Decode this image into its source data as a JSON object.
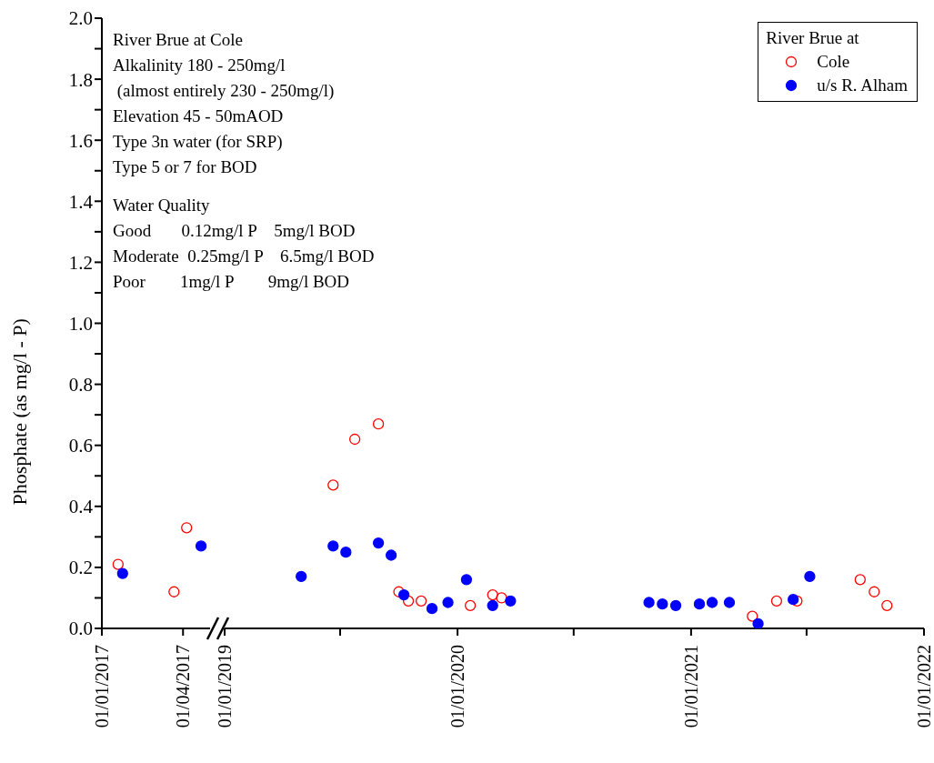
{
  "chart_data": [
    {
      "type": "scatter",
      "ylabel": "Phosphate (as mg/l - P)",
      "marker": "circle",
      "annotations": [
        "River Brue at Cole\nAlkalinity 180 - 250mg/l\n (almost entirely 230 - 250mg/l)\nElevation 45 - 50mAOD\nType 3n water (for SRP)\nType 5 or 7 for BOD",
        "Water Quality\nGood       0.12mg/l P    5mg/l BOD\nModerate  0.25mg/l P    6.5mg/l BOD\nPoor        1mg/l P        9mg/l BOD"
      ],
      "xlim": [
        "2017-01-01",
        "2017-05-01"
      ],
      "xticks": [
        {
          "value": "2017-01-01",
          "label": "01/01/2017"
        },
        {
          "value": "2017-04-01",
          "label": "01/04/2017"
        }
      ],
      "ylim": [
        0,
        2
      ],
      "yticks": [
        {
          "value": 0,
          "label": "0.0"
        },
        {
          "value": 0.1,
          "label": null
        },
        0.2,
        {
          "value": 0.3,
          "label": null
        },
        0.4,
        {
          "value": 0.5,
          "label": null
        },
        0.6,
        {
          "value": 0.7,
          "label": null
        },
        0.8,
        {
          "value": 0.9,
          "label": null
        },
        {
          "value": 1,
          "label": "1.0"
        },
        {
          "value": 1.1,
          "label": null
        },
        1.2,
        {
          "value": 1.3,
          "label": null
        },
        1.4,
        {
          "value": 1.5,
          "label": null
        },
        1.6,
        {
          "value": 1.7,
          "label": null
        },
        1.8,
        {
          "value": 1.9,
          "label": null
        },
        {
          "value": 2,
          "label": "2.0"
        }
      ],
      "series": [
        {
          "color": "#ff0000",
          "x": [
            "2017-01-19",
            "2017-03-22",
            "2017-04-05"
          ],
          "values": [
            0.21,
            0.12,
            0.33
          ]
        },
        {
          "color": "#0000ff",
          "x": [
            "2017-01-24",
            "2017-04-21"
          ],
          "values": [
            0.18,
            0.27
          ]
        }
      ]
    },
    {
      "type": "scatter",
      "marker": "circle",
      "tick_labels": "x",
      "legend": "top right",
      "legend_title": "River Brue at",
      "xlim": [
        "2019-01-01",
        "2022-01-01"
      ],
      "xticks": [
        {
          "value": "2019-01-01",
          "label": "01/01/2019"
        },
        {
          "value": "2019-07-01",
          "label": null
        },
        {
          "value": "2020-01-01",
          "label": "01/01/2020"
        },
        {
          "value": "2020-07-01",
          "label": null
        },
        {
          "value": "2021-01-01",
          "label": "01/01/2021"
        },
        {
          "value": "2021-07-01",
          "label": null
        },
        {
          "value": "2022-01-01",
          "label": "01/01/2022"
        }
      ],
      "ylim": [
        0,
        2
      ],
      "series": [
        {
          "name": "Cole",
          "color": "#ff0000",
          "x": [
            "2019-06-20",
            "2019-07-24",
            "2019-08-30",
            "2019-10-01",
            "2019-10-16",
            "2019-11-05",
            "2020-01-21",
            "2020-02-25",
            "2020-03-10",
            "2021-04-07",
            "2021-05-15",
            "2021-06-16",
            "2021-09-23",
            "2021-10-15",
            "2021-11-04"
          ],
          "values": [
            0.47,
            0.62,
            0.67,
            0.12,
            0.09,
            0.09,
            0.075,
            0.11,
            0.1,
            0.04,
            0.09,
            0.09,
            0.16,
            0.12,
            0.075
          ]
        },
        {
          "name": "u/s R. Alham",
          "color": "#0000ff",
          "x": [
            "2019-05-01",
            "2019-06-20",
            "2019-07-10",
            "2019-08-30",
            "2019-09-19",
            "2019-10-09",
            "2019-11-22",
            "2019-12-17",
            "2020-01-15",
            "2020-02-25",
            "2020-03-24",
            "2020-10-27",
            "2020-11-17",
            "2020-12-08",
            "2021-01-14",
            "2021-02-03",
            "2021-03-02",
            "2021-04-16",
            "2021-06-10",
            "2021-07-06"
          ],
          "values": [
            0.17,
            0.27,
            0.25,
            0.28,
            0.24,
            0.11,
            0.065,
            0.085,
            0.16,
            0.075,
            0.09,
            0.085,
            0.08,
            0.075,
            0.08,
            0.085,
            0.085,
            0.015,
            0.095,
            0.17
          ]
        }
      ]
    }
  ]
}
